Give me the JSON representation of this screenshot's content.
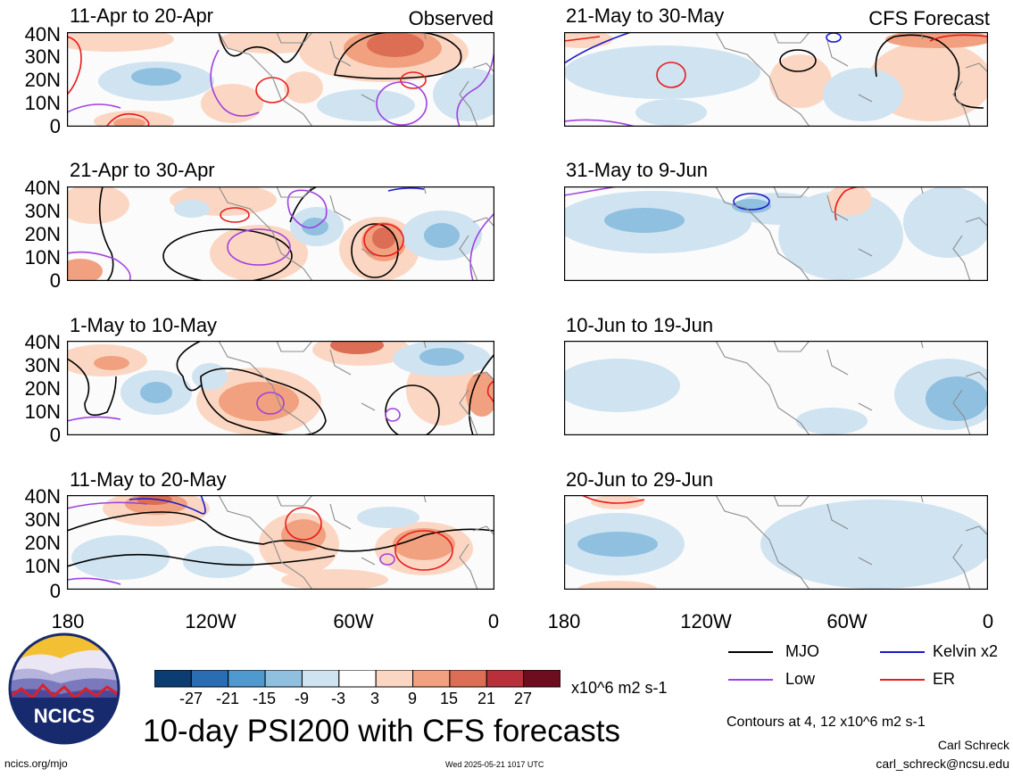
{
  "figure": {
    "title": "10-day PSI200 with CFS forecasts",
    "observed_label": "Observed",
    "forecast_label": "CFS Forecast"
  },
  "panels": {
    "observed": [
      {
        "title": "11-Apr to 20-Apr"
      },
      {
        "title": "21-Apr to 30-Apr"
      },
      {
        "title": "1-May to 10-May"
      },
      {
        "title": "11-May to 20-May"
      }
    ],
    "forecast": [
      {
        "title": "21-May to 30-May"
      },
      {
        "title": "31-May to 9-Jun"
      },
      {
        "title": "10-Jun to 19-Jun"
      },
      {
        "title": "20-Jun to 29-Jun"
      }
    ]
  },
  "axes": {
    "lat_labels": [
      "40N",
      "30N",
      "20N",
      "10N",
      "0"
    ],
    "lon_labels": [
      "180",
      "120W",
      "60W",
      "0"
    ]
  },
  "colorbar": {
    "ticks": [
      "-27",
      "-21",
      "-15",
      "-9",
      "-3",
      "3",
      "9",
      "15",
      "21",
      "27"
    ],
    "units": "x10^6 m2 s-1",
    "colors": [
      "#0b3d73",
      "#2a6db3",
      "#4f99cf",
      "#8fc0e0",
      "#cfe3f1",
      "#ffffff",
      "#fbd7c3",
      "#f1a17f",
      "#db6e54",
      "#b9303b",
      "#6e0d1f"
    ]
  },
  "legend": {
    "items": [
      {
        "label": "MJO",
        "color": "#000000"
      },
      {
        "label": "Kelvin x2",
        "color": "#1a1acc"
      },
      {
        "label": "Low",
        "color": "#a040e0"
      },
      {
        "label": "ER",
        "color": "#e81c1c"
      }
    ],
    "contours_note": "Contours at 4, 12 x10^6 m2 s-1"
  },
  "footer": {
    "logo_text": "NCICS",
    "website": "ncics.org/mjo",
    "timestamp": "Wed 2025-05-21 1017 UTC",
    "author": "Carl Schreck",
    "email": "carl_schreck@ncsu.edu"
  }
}
